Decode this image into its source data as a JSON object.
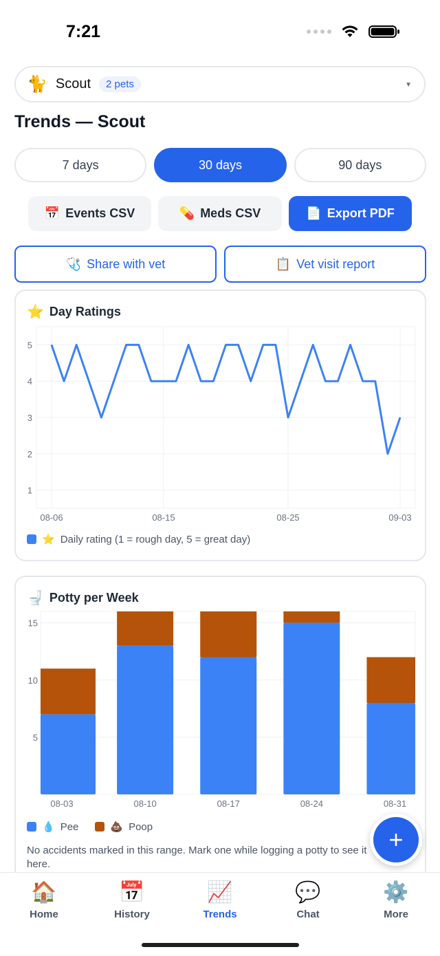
{
  "status_bar": {
    "time": "7:21"
  },
  "pet_selector": {
    "emoji": "🐈",
    "name": "Scout",
    "badge": "2 pets"
  },
  "page": {
    "title": "Trends — Scout"
  },
  "range": {
    "options": [
      "7 days",
      "30 days",
      "90 days"
    ],
    "selected": "30 days"
  },
  "exports": {
    "events_icon": "📅",
    "events_label": "Events CSV",
    "meds_icon": "💊",
    "meds_label": "Meds CSV",
    "pdf_icon": "📄",
    "pdf_label": "Export PDF"
  },
  "share": {
    "vet_icon": "🩺",
    "vet_label": "Share with vet",
    "report_icon": "📋",
    "report_label": "Vet visit report"
  },
  "ratings_card": {
    "icon": "⭐",
    "title": "Day Ratings",
    "legend_icon": "⭐",
    "legend_label": "Daily rating (1 = rough day, 5 = great day)"
  },
  "potty_card": {
    "icon": "🚽",
    "title": "Potty per Week",
    "legend_pee_icon": "💧",
    "legend_pee": "Pee",
    "legend_poop_icon": "💩",
    "legend_poop": "Poop",
    "note": "No accidents marked in this range. Mark one while logging a potty to see it here."
  },
  "colors": {
    "accent": "#2563eb",
    "line": "#3b82f6",
    "pee": "#3b82f6",
    "poop": "#b45309"
  },
  "chart_data": [
    {
      "type": "line",
      "title": "Day Ratings",
      "x_tick_labels": [
        "08-06",
        "08-15",
        "08-25",
        "09-03"
      ],
      "x": [
        "08-06",
        "08-07",
        "08-08",
        "08-09",
        "08-10",
        "08-11",
        "08-12",
        "08-13",
        "08-14",
        "08-15",
        "08-16",
        "08-17",
        "08-18",
        "08-19",
        "08-20",
        "08-21",
        "08-22",
        "08-23",
        "08-24",
        "08-25",
        "08-26",
        "08-27",
        "08-28",
        "08-29",
        "08-30",
        "08-31",
        "09-01",
        "09-02",
        "09-03"
      ],
      "series": [
        {
          "name": "Daily rating (1 = rough day, 5 = great day)",
          "values": [
            5,
            4,
            5,
            4,
            3,
            4,
            5,
            5,
            4,
            4,
            4,
            5,
            4,
            4,
            5,
            5,
            4,
            5,
            5,
            3,
            4,
            5,
            4,
            4,
            5,
            4,
            4,
            2,
            3
          ]
        }
      ],
      "ylim": [
        0.5,
        5.5
      ],
      "y_ticks": [
        1,
        2,
        3,
        4,
        5
      ],
      "grid": true,
      "legend": "bottom-left"
    },
    {
      "type": "bar",
      "title": "Potty per Week",
      "stacked": true,
      "categories": [
        "08-03",
        "08-10",
        "08-17",
        "08-24",
        "08-31"
      ],
      "series": [
        {
          "name": "Pee",
          "values": [
            7,
            13,
            12,
            15,
            8
          ]
        },
        {
          "name": "Poop",
          "values": [
            4,
            4,
            4,
            2,
            4
          ]
        }
      ],
      "ylim": [
        0,
        16
      ],
      "y_ticks": [
        5,
        10,
        15
      ],
      "grid": true,
      "legend": "bottom-left"
    }
  ],
  "fab": {
    "label": "+"
  },
  "tabs": [
    {
      "icon": "🏠",
      "label": "Home"
    },
    {
      "icon": "📅",
      "label": "History"
    },
    {
      "icon": "📈",
      "label": "Trends"
    },
    {
      "icon": "💬",
      "label": "Chat"
    },
    {
      "icon": "⚙️",
      "label": "More"
    }
  ]
}
